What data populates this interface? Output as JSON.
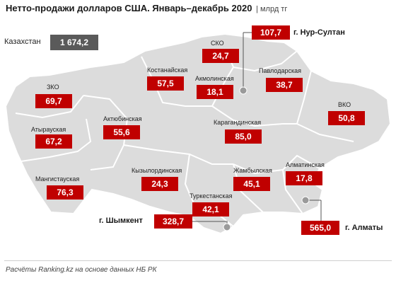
{
  "title": "Нетто-продажи долларов США. Январь–декабрь 2020",
  "unit": "млрд тг",
  "total": {
    "label": "Казахстан",
    "value": "1 674,2"
  },
  "regions": {
    "zko": {
      "name": "ЗКО",
      "value": "69,7"
    },
    "atyrau": {
      "name": "Атырауская",
      "value": "67,2"
    },
    "mangystau": {
      "name": "Мангистауская",
      "value": "76,3"
    },
    "aktobe": {
      "name": "Актюбинская",
      "value": "55,6"
    },
    "kostanay": {
      "name": "Костанайская",
      "value": "57,5"
    },
    "sko": {
      "name": "СКО",
      "value": "24,7"
    },
    "akmola": {
      "name": "Акмолинская",
      "value": "18,1"
    },
    "pavlodar": {
      "name": "Павлодарская",
      "value": "38,7"
    },
    "vko": {
      "name": "ВКО",
      "value": "50,8"
    },
    "karaganda": {
      "name": "Карагандинская",
      "value": "85,0"
    },
    "kyzylorda": {
      "name": "Кызылординская",
      "value": "24,3"
    },
    "zhambyl": {
      "name": "Жамбылская",
      "value": "45,1"
    },
    "almaty_reg": {
      "name": "Алматинская",
      "value": "17,8"
    },
    "turkestan": {
      "name": "Туркестанская",
      "value": "42,1"
    }
  },
  "cities": {
    "nursultan": {
      "name": "г. Нур-Султан",
      "value": "107,7"
    },
    "shymkent": {
      "name": "г. Шымкент",
      "value": "328,7"
    },
    "almaty": {
      "name": "г. Алматы",
      "value": "565,0"
    }
  },
  "source": "Расчёты Ranking.kz на основе данных НБ РК",
  "colors": {
    "value_box": "#c00000",
    "total_box": "#5a5a5a",
    "map_fill": "#dcdcdc",
    "map_border": "#ffffff"
  }
}
